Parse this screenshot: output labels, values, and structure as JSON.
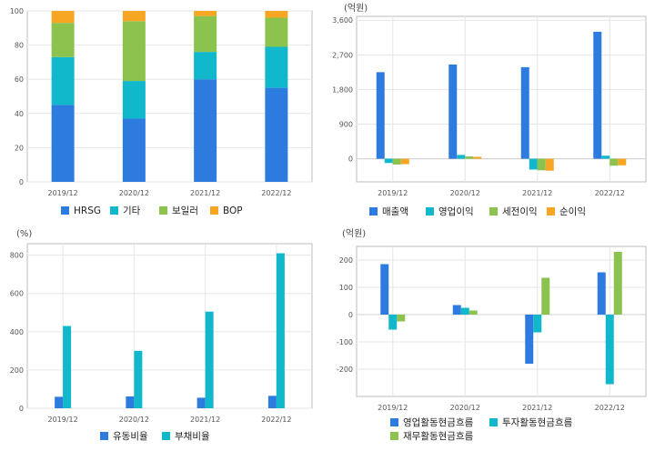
{
  "colors": {
    "blue": "#2e7be0",
    "teal": "#11b8cc",
    "green": "#8cc24e",
    "orange": "#f6a623",
    "grid": "#e6e6e6",
    "axis": "#bdbdbd"
  },
  "chart_data": [
    {
      "type": "bar",
      "stacked": true,
      "title": "",
      "unit": "",
      "categories": [
        "2019/12",
        "2020/12",
        "2021/12",
        "2022/12"
      ],
      "ylim": [
        0,
        100
      ],
      "yticks": [
        0,
        20,
        40,
        60,
        80,
        100
      ],
      "ytick_labels": [
        "0",
        "20",
        "40",
        "60",
        "80",
        "100"
      ],
      "grid": true,
      "legend_position": "bottom",
      "series": [
        {
          "name": "HRSG",
          "color": "#2e7be0",
          "values": [
            45,
            37,
            60,
            55
          ]
        },
        {
          "name": "기타",
          "color": "#11b8cc",
          "values": [
            28,
            22,
            16,
            24
          ]
        },
        {
          "name": "보일러",
          "color": "#8cc24e",
          "values": [
            20,
            35,
            21,
            17
          ]
        },
        {
          "name": "BOP",
          "color": "#f6a623",
          "values": [
            7,
            6,
            3,
            4
          ]
        }
      ]
    },
    {
      "type": "bar",
      "title": "",
      "unit": "(억원)",
      "categories": [
        "2019/12",
        "2020/12",
        "2021/12",
        "2022/12"
      ],
      "ylim": [
        -600,
        3700
      ],
      "yticks": [
        0,
        900,
        1800,
        2700,
        3600
      ],
      "ytick_labels": [
        "0",
        "900",
        "1,800",
        "2,700",
        "3,600"
      ],
      "grid": true,
      "legend_position": "bottom",
      "series": [
        {
          "name": "매출액",
          "color": "#2e7be0",
          "values": [
            2250,
            2450,
            2380,
            3300
          ]
        },
        {
          "name": "영업이익",
          "color": "#11b8cc",
          "values": [
            -110,
            100,
            -280,
            80
          ]
        },
        {
          "name": "세전이익",
          "color": "#8cc24e",
          "values": [
            -150,
            60,
            -300,
            -180
          ]
        },
        {
          "name": "순이익",
          "color": "#f6a623",
          "values": [
            -140,
            50,
            -310,
            -170
          ]
        }
      ]
    },
    {
      "type": "bar",
      "title": "",
      "unit": "(%)",
      "categories": [
        "2019/12",
        "2020/12",
        "2021/12",
        "2022/12"
      ],
      "ylim": [
        0,
        860
      ],
      "yticks": [
        0,
        200,
        400,
        600,
        800
      ],
      "ytick_labels": [
        "0",
        "200",
        "400",
        "600",
        "800"
      ],
      "grid": true,
      "legend_position": "bottom",
      "series": [
        {
          "name": "유동비율",
          "color": "#2e7be0",
          "values": [
            60,
            62,
            55,
            65
          ]
        },
        {
          "name": "부채비율",
          "color": "#11b8cc",
          "values": [
            430,
            300,
            505,
            810
          ]
        }
      ]
    },
    {
      "type": "bar",
      "title": "",
      "unit": "(억원)",
      "categories": [
        "2019/12",
        "2020/12",
        "2021/12",
        "2022/12"
      ],
      "ylim": [
        -300,
        250
      ],
      "yticks": [
        -200,
        -100,
        0,
        100,
        200
      ],
      "ytick_labels": [
        "-200",
        "-100",
        "0",
        "100",
        "200"
      ],
      "grid": true,
      "legend_position": "bottom",
      "series": [
        {
          "name": "영업활동현금흐름",
          "color": "#2e7be0",
          "values": [
            185,
            35,
            -180,
            155
          ]
        },
        {
          "name": "투자활동현금흐름",
          "color": "#11b8cc",
          "values": [
            -55,
            25,
            -65,
            -255
          ]
        },
        {
          "name": "재무활동현금흐름",
          "color": "#8cc24e",
          "values": [
            -25,
            15,
            135,
            230
          ]
        }
      ]
    }
  ]
}
